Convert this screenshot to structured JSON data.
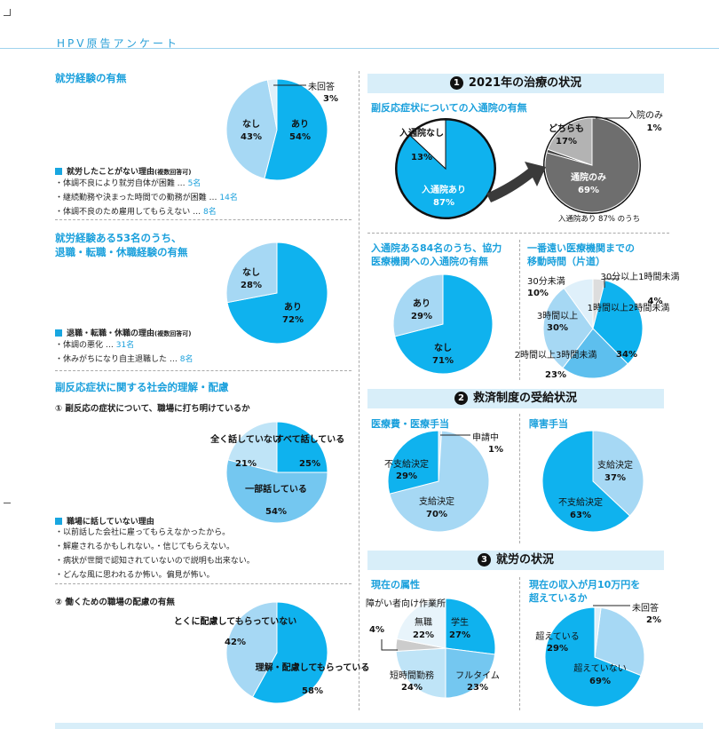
{
  "header": {
    "title": "HPV原告アンケート"
  },
  "left": {
    "employment": {
      "title": "就労経験の有無",
      "reasons_heading": "就労したことがない理由",
      "reasons_note": "(複数回答可)",
      "reasons": [
        {
          "text": "・体調不良により就労自体が困難 …",
          "count": "5名"
        },
        {
          "text": "・継続勤務や決まった時間での勤務が困難 …",
          "count": "14名"
        },
        {
          "text": "・体調不良のため雇用してもらえない …",
          "count": "8名"
        }
      ]
    },
    "job_change": {
      "title_line1": "就労経験ある53名のうち、",
      "title_line2": "退職・転職・休職経験の有無",
      "reasons_heading": "退職・転職・休職の理由",
      "reasons_note": "(複数回答可)",
      "reasons": [
        {
          "text": "・体調の悪化 …",
          "count": "31名"
        },
        {
          "text": "・休みがちになり自主退職した …",
          "count": "8名"
        }
      ]
    },
    "social": {
      "title": "副反応症状に関する社会的理解・配慮",
      "q1": "① 副反応の症状について、職場に打ち明けているか",
      "reasons_heading": "職場に話していない理由",
      "reasons": [
        "・以前話した会社に雇ってもらえなかったから。",
        "・解雇されるかもしれない。・信じてもらえない。",
        "・病状が世間で認知されていないので説明も出来ない。",
        "・どんな風に思われるか怖い。偏見が怖い。"
      ],
      "q2": "② 働くための職場の配慮の有無"
    }
  },
  "right": {
    "band1": {
      "num": "1",
      "title": "2021年の治療の状況"
    },
    "hosp": {
      "title": "副反応症状についての入通院の有無",
      "footnote": "入通院あり 87% のうち"
    },
    "coop": {
      "title_line1": "入通院ある84名のうち、協力",
      "title_line2": "医療機関への入通院の有無"
    },
    "travel": {
      "title_line1": "一番遠い医療機関までの",
      "title_line2": "移動時間（片道）"
    },
    "band2": {
      "num": "2",
      "title": "救済制度の受給状況"
    },
    "medical_title": "医療費・医療手当",
    "disability_title": "障害手当",
    "band3": {
      "num": "3",
      "title": "就労の状況"
    },
    "current_title": "現在の属性",
    "income": {
      "title_line1": "現在の収入が月10万円を",
      "title_line2": "超えているか"
    }
  },
  "chart_data": [
    {
      "id": "employment",
      "type": "pie",
      "slices": [
        {
          "label": "あり",
          "value": 54,
          "value_text": "54%",
          "color": "#0fb2ee"
        },
        {
          "label": "なし",
          "value": 43,
          "value_text": "43%",
          "color": "#a6d8f4"
        },
        {
          "label": "未回答",
          "value": 3,
          "value_text": "3%",
          "color": "#dff0fa"
        }
      ]
    },
    {
      "id": "job_change",
      "type": "pie",
      "slices": [
        {
          "label": "あり",
          "value": 72,
          "value_text": "72%",
          "color": "#0fb2ee"
        },
        {
          "label": "なし",
          "value": 28,
          "value_text": "28%",
          "color": "#a6d8f4"
        }
      ]
    },
    {
      "id": "confide",
      "type": "pie",
      "slices": [
        {
          "label": "すべて話している",
          "value": 25,
          "value_text": "25%",
          "color": "#0fb2ee"
        },
        {
          "label": "一部話している",
          "value": 54,
          "value_text": "54%",
          "color": "#74c7f0"
        },
        {
          "label": "全く話していない",
          "value": 21,
          "value_text": "21%",
          "color": "#bfe4f7"
        }
      ]
    },
    {
      "id": "workplace",
      "type": "pie",
      "slices": [
        {
          "label": "理解・配慮してもらっている",
          "value": 58,
          "value_text": "58%",
          "color": "#0fb2ee"
        },
        {
          "label": "とくに配慮してもらっていない",
          "value": 42,
          "value_text": "42%",
          "color": "#a6d8f4"
        }
      ]
    },
    {
      "id": "hospital",
      "type": "pie",
      "slices": [
        {
          "label": "入通院あり",
          "value": 87,
          "value_text": "87%",
          "color": "#0fb2ee"
        },
        {
          "label": "入通院なし",
          "value": 13,
          "value_text": "13%",
          "color": "#ffffff"
        }
      ]
    },
    {
      "id": "hospital_type",
      "type": "pie",
      "slices": [
        {
          "label": "通院のみ",
          "value": 69,
          "value_text": "69%",
          "color": "#6e6e6e"
        },
        {
          "label": "入院のみ",
          "value": 1,
          "value_text": "1%",
          "color": "#444444"
        },
        {
          "label": "どちらも",
          "value": 17,
          "value_text": "17%",
          "color": "#b3b3b3"
        }
      ]
    },
    {
      "id": "cooperation",
      "type": "pie",
      "slices": [
        {
          "label": "なし",
          "value": 71,
          "value_text": "71%",
          "color": "#0fb2ee"
        },
        {
          "label": "あり",
          "value": 29,
          "value_text": "29%",
          "color": "#a6d8f4"
        }
      ]
    },
    {
      "id": "travel_time",
      "type": "pie",
      "slices": [
        {
          "label": "30分以上1時間未満",
          "value": 4,
          "value_text": "4%",
          "color": "#dddddd"
        },
        {
          "label": "1時間以上2時間未満",
          "value": 34,
          "value_text": "34%",
          "color": "#0fb2ee"
        },
        {
          "label": "2時間以上3時間未満",
          "value": 23,
          "value_text": "23%",
          "color": "#5dbfee"
        },
        {
          "label": "3時間以上",
          "value": 30,
          "value_text": "30%",
          "color": "#a6d8f4"
        },
        {
          "label": "30分未満",
          "value": 10,
          "value_text": "10%",
          "color": "#dff0fa"
        }
      ]
    },
    {
      "id": "medical",
      "type": "pie",
      "slices": [
        {
          "label": "申請中",
          "value": 1,
          "value_text": "1%",
          "color": "#dff0fa"
        },
        {
          "label": "支給決定",
          "value": 70,
          "value_text": "70%",
          "color": "#a6d8f4"
        },
        {
          "label": "不支給決定",
          "value": 29,
          "value_text": "29%",
          "color": "#0fb2ee"
        }
      ]
    },
    {
      "id": "disability",
      "type": "pie",
      "slices": [
        {
          "label": "支給決定",
          "value": 37,
          "value_text": "37%",
          "color": "#a6d8f4"
        },
        {
          "label": "不支給決定",
          "value": 63,
          "value_text": "63%",
          "color": "#0fb2ee"
        }
      ]
    },
    {
      "id": "attributes",
      "type": "pie",
      "slices": [
        {
          "label": "学生",
          "value": 27,
          "value_text": "27%",
          "color": "#0fb2ee"
        },
        {
          "label": "フルタイム",
          "value": 23,
          "value_text": "23%",
          "color": "#74c7f0"
        },
        {
          "label": "短時間勤務",
          "value": 24,
          "value_text": "24%",
          "color": "#bfe4f7"
        },
        {
          "label": "障がい者向け作業所",
          "value": 4,
          "value_text": "4%",
          "color": "#cccccc"
        },
        {
          "label": "無職",
          "value": 22,
          "value_text": "22%",
          "color": "#e8f4fb"
        }
      ]
    },
    {
      "id": "income",
      "type": "pie",
      "slices": [
        {
          "label": "超えていない",
          "value": 69,
          "value_text": "69%",
          "color": "#0fb2ee"
        },
        {
          "label": "超えている",
          "value": 29,
          "value_text": "29%",
          "color": "#a6d8f4"
        },
        {
          "label": "未回答",
          "value": 2,
          "value_text": "2%",
          "color": "#dff0fa"
        }
      ]
    }
  ]
}
